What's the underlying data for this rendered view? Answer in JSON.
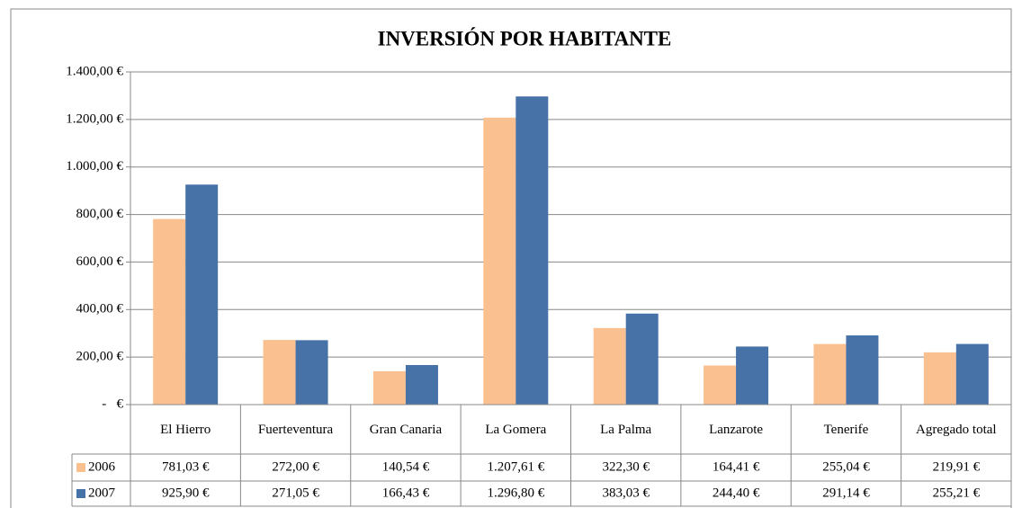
{
  "chart_data": {
    "type": "bar",
    "title": "INVERSIÓN POR HABITANTE",
    "categories": [
      "El Hierro",
      "Fuerteventura",
      "Gran Canaria",
      "La Gomera",
      "La Palma",
      "Lanzarote",
      "Tenerife",
      "Agregado total"
    ],
    "series": [
      {
        "name": "2006",
        "color": "#fac090",
        "values": [
          781.03,
          272.0,
          140.54,
          1207.61,
          322.3,
          164.41,
          255.04,
          219.91
        ],
        "value_labels": [
          "781,03 €",
          "272,00 €",
          "140,54 €",
          "1.207,61 €",
          "322,30 €",
          "164,41 €",
          "255,04 €",
          "219,91 €"
        ]
      },
      {
        "name": "2007",
        "color": "#4672a8",
        "values": [
          925.9,
          271.05,
          166.43,
          1296.8,
          383.03,
          244.4,
          291.14,
          255.21
        ],
        "value_labels": [
          "925,90 €",
          "271,05 €",
          "166,43 €",
          "1.296,80 €",
          "383,03 €",
          "244,40 €",
          "291,14 €",
          "255,21 €"
        ]
      }
    ],
    "ylim": [
      0,
      1400
    ],
    "yticks": [
      {
        "value": 0,
        "label": "-   €"
      },
      {
        "value": 200,
        "label": "200,00 €"
      },
      {
        "value": 400,
        "label": "400,00 €"
      },
      {
        "value": 600,
        "label": "600,00 €"
      },
      {
        "value": 800,
        "label": "800,00 €"
      },
      {
        "value": 1000,
        "label": "1.000,00 €"
      },
      {
        "value": 1200,
        "label": "1.200,00 €"
      },
      {
        "value": 1400,
        "label": "1.400,00 €"
      }
    ],
    "grid": true
  }
}
